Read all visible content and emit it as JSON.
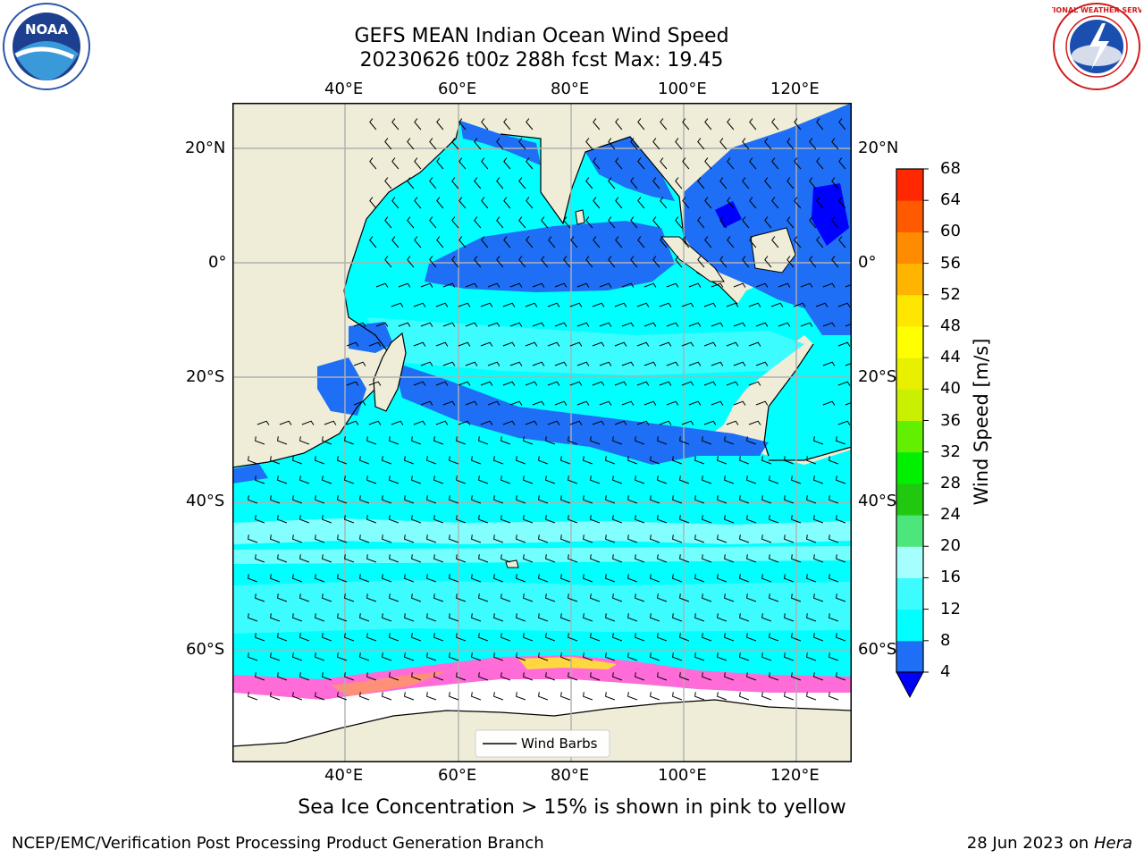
{
  "header": {
    "title_line1": "GEFS MEAN Indian Ocean Wind Speed",
    "title_line2": "20230626 t00z 288h fcst   Max: 19.45"
  },
  "logos": {
    "noaa_text": "NOAA",
    "noaa_ring_text": "NATIONAL OCEANIC AND ATMOSPHERIC ADMINISTRATION",
    "noaa_ring_bottom": "U.S. DEPARTMENT OF COMMERCE",
    "nws_ring_text": "NATIONAL WEATHER SERVICE"
  },
  "map": {
    "lon_labels": [
      "40°E",
      "60°E",
      "80°E",
      "100°E",
      "120°E"
    ],
    "lat_labels": [
      "20°N",
      "0°",
      "20°S",
      "40°S",
      "60°S"
    ],
    "legend_label": "Wind Barbs",
    "colors": {
      "land": "#efedd8",
      "ice_shelf": "#ffffff",
      "wind_4_8": "#1e6ff5",
      "wind_8_12": "#00ffff",
      "wind_12_16": "#3cfcff",
      "wind_16_20": "#a5ffff",
      "calm_lt_4": "#0000ff",
      "sea_ice": "#ff6cd8"
    }
  },
  "colorbar": {
    "label": "Wind Speed [m/s]",
    "ticks": [
      "4",
      "8",
      "12",
      "16",
      "20",
      "24",
      "28",
      "32",
      "36",
      "40",
      "44",
      "48",
      "52",
      "56",
      "60",
      "64",
      "68"
    ],
    "colors": [
      "#1e6ff5",
      "#00ffff",
      "#3cfcff",
      "#a5ffff",
      "#4ce67a",
      "#20c810",
      "#00f000",
      "#62f000",
      "#c8f000",
      "#e8f000",
      "#ffff00",
      "#ffe600",
      "#ffb400",
      "#ff8c00",
      "#ff5a00",
      "#ff2800"
    ],
    "under_color": "#0000ff"
  },
  "footer": {
    "note": "Sea Ice Concentration > 15% is shown in pink to yellow",
    "credit": "NCEP/EMC/Verification Post Processing Product Generation Branch",
    "date": "28 Jun 2023 on",
    "machine": "Hera"
  }
}
